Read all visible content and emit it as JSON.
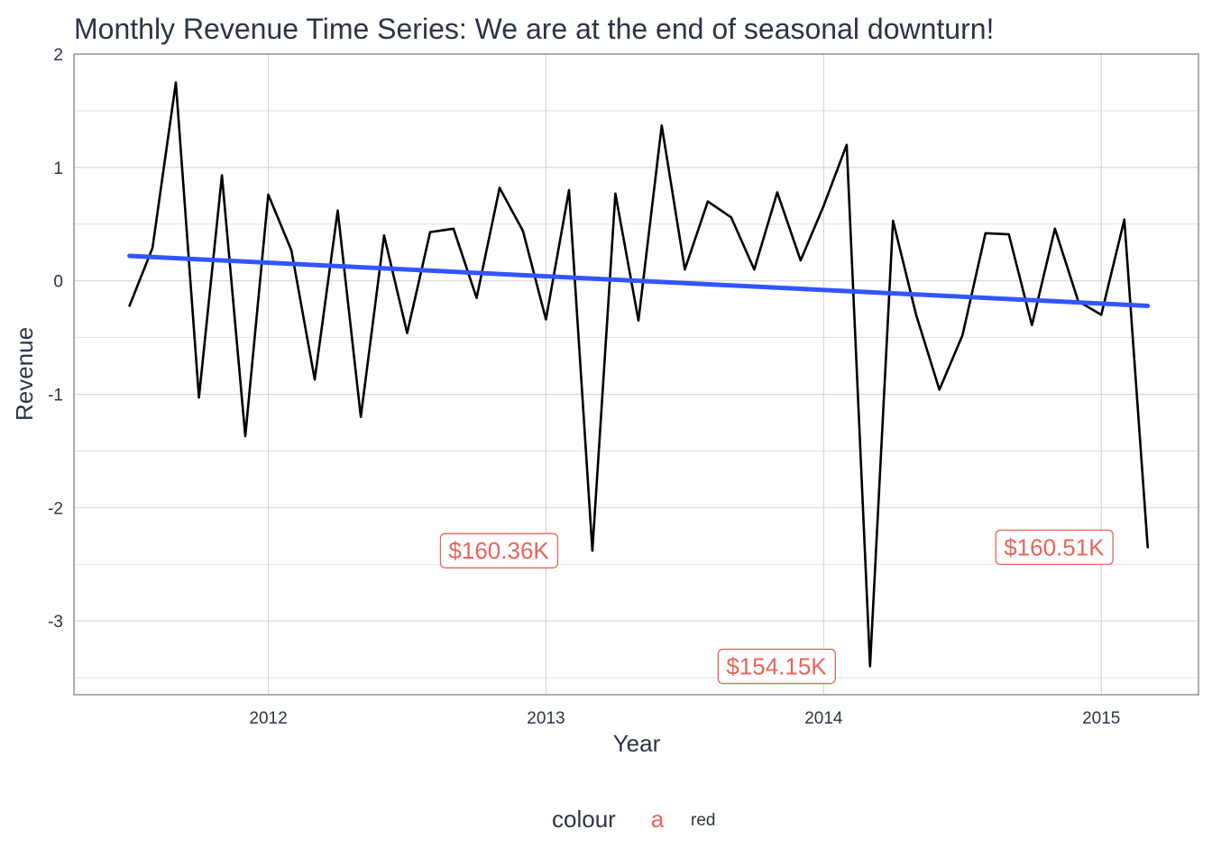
{
  "chart_data": {
    "type": "line",
    "title": "Monthly Revenue Time Series: We are at the end of seasonal downturn!",
    "xlabel": "Year",
    "ylabel": "Revenue",
    "xlim": [
      2011.3,
      2015.35
    ],
    "ylim": [
      -3.65,
      2.0
    ],
    "x_ticks": [
      2012,
      2013,
      2014,
      2015
    ],
    "x_tick_labels": [
      "2012",
      "2013",
      "2014",
      "2015"
    ],
    "y_ticks": [
      2,
      1,
      0,
      -1,
      -2,
      -3
    ],
    "y_tick_labels": [
      "2",
      "1",
      "0",
      "-1",
      "-2",
      "-3"
    ],
    "grid": true,
    "series": [
      {
        "color": "#000000",
        "x": [
          2011.5,
          2011.583,
          2011.667,
          2011.75,
          2011.833,
          2011.917,
          2012.0,
          2012.083,
          2012.167,
          2012.25,
          2012.333,
          2012.417,
          2012.5,
          2012.583,
          2012.667,
          2012.75,
          2012.833,
          2012.917,
          2013.0,
          2013.083,
          2013.167,
          2013.25,
          2013.333,
          2013.417,
          2013.5,
          2013.583,
          2013.667,
          2013.75,
          2013.833,
          2013.917,
          2014.0,
          2014.083,
          2014.167,
          2014.25,
          2014.333,
          2014.417,
          2014.5,
          2014.583,
          2014.667,
          2014.75,
          2014.833,
          2014.917,
          2015.0,
          2015.083,
          2015.167
        ],
        "y": [
          -0.22,
          0.29,
          1.75,
          -1.03,
          0.93,
          -1.37,
          0.76,
          0.27,
          -0.87,
          0.62,
          -1.2,
          0.4,
          -0.46,
          0.43,
          0.46,
          -0.15,
          0.82,
          0.44,
          -0.34,
          0.8,
          -2.38,
          0.77,
          -0.35,
          1.37,
          0.1,
          0.7,
          0.56,
          0.1,
          0.78,
          0.18,
          0.66,
          1.2,
          -3.4,
          0.53,
          -0.3,
          -0.96,
          -0.48,
          0.42,
          0.41,
          -0.39,
          0.46,
          -0.18,
          -0.3,
          0.54,
          -2.35
        ]
      },
      {
        "color": "#3355ff",
        "x": [
          2011.5,
          2015.167
        ],
        "y": [
          0.22,
          -0.22
        ]
      }
    ],
    "annotations": [
      {
        "text": "$160.36K",
        "x": 2012.83,
        "y": -2.38,
        "color": "#e8645a"
      },
      {
        "text": "$154.15K",
        "x": 2013.83,
        "y": -3.4,
        "color": "#e8645a"
      },
      {
        "text": "$160.51K",
        "x": 2014.83,
        "y": -2.35,
        "color": "#e8645a"
      }
    ],
    "legend": {
      "position": "bottom",
      "title": "colour",
      "key_glyph": "a",
      "key_color": "#e8645a",
      "label": "red"
    }
  }
}
